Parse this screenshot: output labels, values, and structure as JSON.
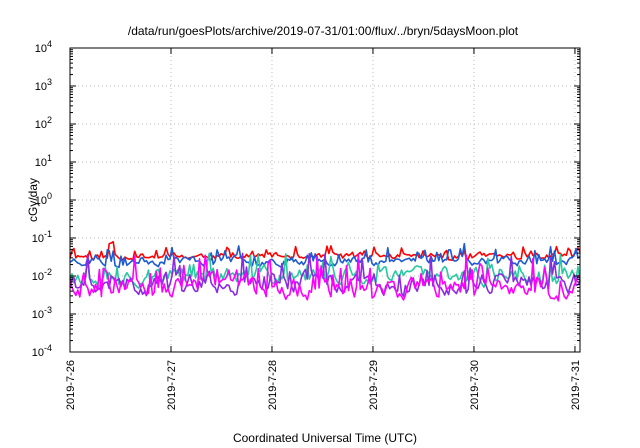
{
  "chart_data": {
    "type": "line",
    "title": "/data/run/goesPlots/archive/2019-07-31/01:00/flux/../bryn/5daysMoon.plot",
    "xlabel": "Coordinated Universal Time (UTC)",
    "ylabel": "cGy/day",
    "y_scale": "log",
    "ylim": [
      0.0001,
      10000
    ],
    "xlim": [
      0,
      5.05
    ],
    "grid": true,
    "y_ticks": [
      {
        "base": "10",
        "exp": "-4"
      },
      {
        "base": "10",
        "exp": "-3"
      },
      {
        "base": "10",
        "exp": "-2"
      },
      {
        "base": "10",
        "exp": "-1"
      },
      {
        "base": "10",
        "exp": "0"
      },
      {
        "base": "10",
        "exp": "1"
      },
      {
        "base": "10",
        "exp": "2"
      },
      {
        "base": "10",
        "exp": "3"
      },
      {
        "base": "10",
        "exp": "4"
      }
    ],
    "x_ticks": [
      "2019-7-26",
      "2019-7-27",
      "2019-7-28",
      "2019-7-29",
      "2019-7-30",
      "2019-7-31"
    ],
    "series": [
      {
        "color": "#ff0000",
        "base": 0.033,
        "amp": 0.22,
        "seed": 11
      },
      {
        "color": "#1e5ad2",
        "base": 0.026,
        "amp": 0.3,
        "seed": 23
      },
      {
        "color": "#28c8a0",
        "base": 0.01,
        "amp": 0.55,
        "seed": 37
      },
      {
        "color": "#8a2be2",
        "base": 0.0065,
        "amp": 0.65,
        "seed": 41
      },
      {
        "color": "#ff00ff",
        "base": 0.005,
        "amp": 0.7,
        "seed": 53
      }
    ]
  }
}
